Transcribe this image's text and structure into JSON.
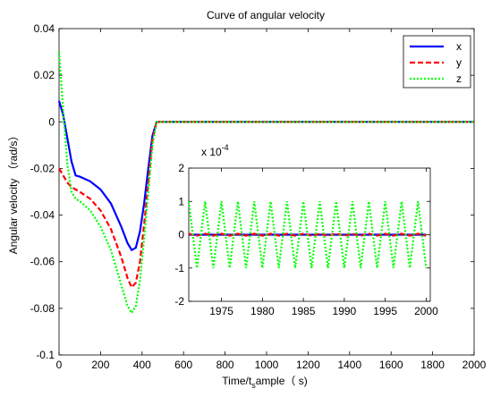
{
  "colors": {
    "x": "#0000ff",
    "y": "#ff0000",
    "z": "#00ff00"
  },
  "chart_data": [
    {
      "type": "line",
      "title": "Curve of angular velocity",
      "xlabel_main": "Time/t",
      "xlabel_sub": "s",
      "xlabel_rest": "ample（ s)",
      "ylabel": "Angular velocity （rad/s）",
      "xlim": [
        0,
        2000
      ],
      "ylim": [
        -0.1,
        0.04
      ],
      "x_ticks": [
        0,
        200,
        400,
        600,
        800,
        1000,
        1200,
        1400,
        1600,
        1800,
        2000
      ],
      "x_tick_labels": [
        "0",
        "200",
        "400",
        "600",
        "800",
        "1000",
        "1200",
        "1400",
        "1600",
        "1800",
        "2000"
      ],
      "y_ticks": [
        -0.1,
        -0.08,
        -0.06,
        -0.04,
        -0.02,
        0,
        0.02,
        0.04
      ],
      "y_tick_labels": [
        "-0.1",
        "-0.08",
        "-0.06",
        "-0.04",
        "-0.02",
        "0",
        "0.02",
        "0.04"
      ],
      "grid": false,
      "legend_position": "top-right",
      "series": [
        {
          "name": "x",
          "color": "#0000ff",
          "style": "solid",
          "x": [
            0,
            20,
            40,
            60,
            80,
            100,
            150,
            200,
            250,
            300,
            330,
            350,
            370,
            390,
            410,
            430,
            450,
            470,
            500,
            600,
            800,
            1000,
            1200,
            1400,
            1600,
            1800,
            2000
          ],
          "y": [
            0.009,
            0.003,
            -0.007,
            -0.017,
            -0.023,
            -0.0235,
            -0.0255,
            -0.029,
            -0.035,
            -0.045,
            -0.052,
            -0.055,
            -0.054,
            -0.047,
            -0.035,
            -0.02,
            -0.006,
            0.0,
            0.0,
            0.0,
            0.0,
            0.0,
            0.0,
            0.0,
            0.0,
            0.0,
            0.0
          ]
        },
        {
          "name": "y",
          "color": "#ff0000",
          "style": "dashed",
          "x": [
            0,
            20,
            40,
            60,
            80,
            100,
            150,
            200,
            250,
            300,
            330,
            350,
            370,
            390,
            410,
            430,
            450,
            470,
            500,
            600,
            800,
            1000,
            1200,
            1400,
            1600,
            1800,
            2000
          ],
          "y": [
            -0.02,
            -0.023,
            -0.026,
            -0.028,
            -0.029,
            -0.03,
            -0.033,
            -0.038,
            -0.046,
            -0.058,
            -0.067,
            -0.071,
            -0.069,
            -0.06,
            -0.044,
            -0.026,
            -0.008,
            0.0,
            0.0,
            0.0,
            0.0,
            0.0,
            0.0,
            0.0,
            0.0,
            0.0,
            0.0
          ]
        },
        {
          "name": "z",
          "color": "#00ff00",
          "style": "dotted",
          "x": [
            0,
            20,
            40,
            60,
            80,
            100,
            150,
            200,
            250,
            300,
            330,
            350,
            370,
            390,
            410,
            430,
            450,
            470,
            500,
            600,
            800,
            1000,
            1200,
            1400,
            1600,
            1800,
            2000
          ],
          "y": [
            0.03,
            0.005,
            -0.018,
            -0.03,
            -0.033,
            -0.034,
            -0.038,
            -0.045,
            -0.055,
            -0.07,
            -0.079,
            -0.082,
            -0.079,
            -0.068,
            -0.05,
            -0.03,
            -0.01,
            0.0,
            0.0,
            0.0,
            0.0,
            0.0,
            0.0,
            0.0,
            0.0,
            0.0,
            0.0
          ]
        }
      ]
    },
    {
      "type": "line",
      "title": "",
      "xlim": [
        1971,
        2000.5
      ],
      "ylim": [
        -2,
        2
      ],
      "y_exponent_label": "x 10",
      "y_exponent_power": "-4",
      "x_ticks": [
        1975,
        1980,
        1985,
        1990,
        1995,
        2000
      ],
      "x_tick_labels": [
        "1975",
        "1980",
        "1985",
        "1990",
        "1995",
        "2000"
      ],
      "y_ticks": [
        -2,
        -1,
        0,
        1,
        2
      ],
      "y_tick_labels": [
        "-2",
        "-1",
        "0",
        "1",
        "2"
      ],
      "grid": false,
      "series": [
        {
          "name": "x",
          "color": "#0000ff",
          "style": "solid",
          "x": [
            1971,
            2000
          ],
          "y": [
            0.0,
            0.0
          ]
        },
        {
          "name": "y",
          "color": "#ff0000",
          "style": "dashed",
          "x": [
            1971,
            1972,
            1973,
            1974,
            1975,
            1976,
            1977,
            1978,
            1979,
            1980,
            1981,
            1982,
            1983,
            1984,
            1985,
            1986,
            1987,
            1988,
            1989,
            1990,
            1991,
            1992,
            1993,
            1994,
            1995,
            1996,
            1997,
            1998,
            1999,
            2000
          ],
          "y": [
            0.03,
            -0.03,
            0.03,
            -0.03,
            0.03,
            -0.03,
            0.03,
            -0.03,
            0.03,
            -0.03,
            0.03,
            -0.03,
            0.03,
            -0.03,
            0.03,
            -0.03,
            0.03,
            -0.03,
            0.03,
            -0.03,
            0.03,
            -0.03,
            0.03,
            -0.03,
            0.03,
            -0.03,
            0.03,
            -0.03,
            0.03,
            -0.03
          ]
        },
        {
          "name": "z",
          "color": "#00ff00",
          "style": "dotted",
          "x": [
            1971,
            1972,
            1973,
            1974,
            1975,
            1976,
            1977,
            1978,
            1979,
            1980,
            1981,
            1982,
            1983,
            1984,
            1985,
            1986,
            1987,
            1988,
            1989,
            1990,
            1991,
            1992,
            1993,
            1994,
            1995,
            1996,
            1997,
            1998,
            1999,
            2000
          ],
          "y": [
            1.0,
            -1.0,
            1.0,
            -1.0,
            1.0,
            -1.0,
            1.0,
            -1.0,
            1.0,
            -1.0,
            1.0,
            -1.0,
            1.0,
            -1.0,
            1.0,
            -1.0,
            1.0,
            -1.0,
            1.0,
            -1.0,
            1.0,
            -1.0,
            1.0,
            -1.0,
            1.0,
            -1.0,
            1.0,
            -1.0,
            1.0,
            -1.0
          ]
        }
      ]
    }
  ]
}
